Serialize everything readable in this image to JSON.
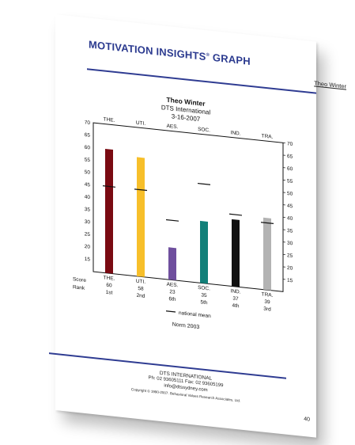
{
  "header": {
    "title": "MOTIVATION INSIGHTS",
    "title_mark": "®",
    "title_suffix": " GRAPH",
    "person_name": "Theo Winter"
  },
  "chart_header": {
    "name": "Theo Winter",
    "org": "DTS International",
    "date": "3-16-2007"
  },
  "chart_data": {
    "type": "bar",
    "categories": [
      "THE.",
      "UTI.",
      "AES.",
      "SOC.",
      "IND.",
      "TRA."
    ],
    "left_axis_ticks": [
      15,
      20,
      25,
      30,
      35,
      40,
      45,
      50,
      55,
      60,
      65,
      70
    ],
    "right_axis_ticks": [
      15,
      20,
      25,
      30,
      35,
      40,
      45,
      50,
      55,
      60,
      65,
      70
    ],
    "ylim": [
      10,
      70
    ],
    "scores": [
      60,
      58,
      23,
      35,
      37,
      39
    ],
    "ranks": [
      "1st",
      "2nd",
      "6th",
      "5th",
      "4th",
      "3rd"
    ],
    "national_mean": [
      45,
      45,
      34,
      50,
      39,
      37
    ],
    "bar_colors": [
      "#7a0a12",
      "#f7bf2a",
      "#6f4f9e",
      "#128079",
      "#111111",
      "#b3b3b3"
    ],
    "row_labels": {
      "score": "Score",
      "rank": "Rank"
    },
    "legend_label": "national mean",
    "norm_label": "Norm 2003"
  },
  "footer": {
    "company": "DTS INTERNATIONAL",
    "phone_fax": "Ph: 02 93605111 Fax: 02 93605199",
    "email": "info@dtssydney.com",
    "copyright": "Copyright © 1990-2007. Behavioral Values Research Associates, Ltd.",
    "page_number": "40"
  }
}
